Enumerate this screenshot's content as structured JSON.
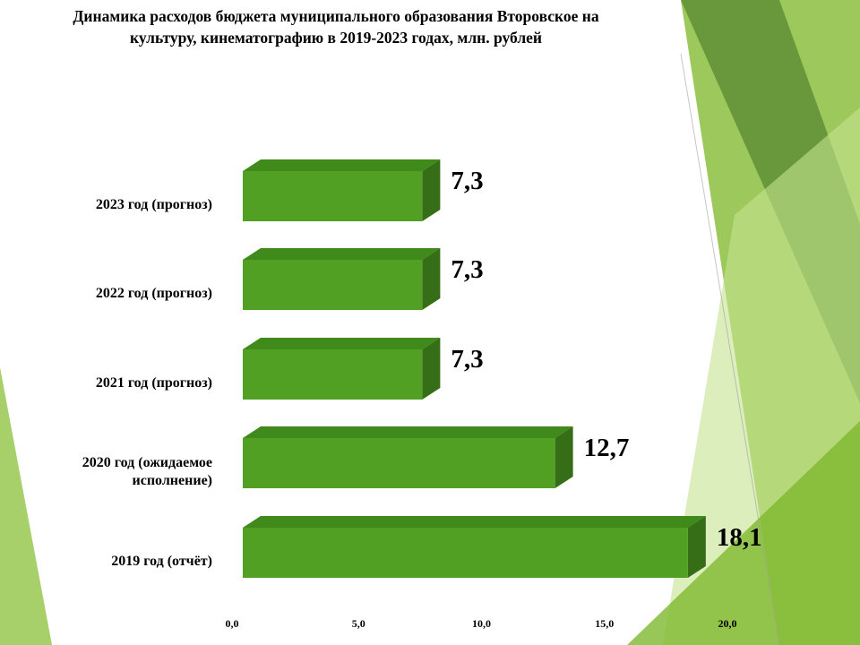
{
  "title": {
    "line1": "Динамика расходов бюджета муниципального образования Второвское на",
    "line2": "культуру, кинематографию в 2019-2023 годах, млн. рублей"
  },
  "colors": {
    "bar_front": "#52a023",
    "bar_top": "#3f8a1a",
    "bar_side": "#356e16",
    "deco_light": "#a8d06a",
    "deco_mid": "#8cbf3f",
    "deco_dark": "#5f8f35"
  },
  "chart_data": {
    "type": "bar",
    "orientation": "horizontal",
    "style": "3d",
    "categories": [
      "2023 год (прогноз)",
      "2022 год (прогноз)",
      "2021 год (прогноз)",
      "2020 год (ожидаемое исполнение)",
      "2019 год (отчёт)"
    ],
    "category_lines": [
      [
        "2023 год (прогноз)"
      ],
      [
        "2022 год (прогноз)"
      ],
      [
        "2021 год (прогноз)"
      ],
      [
        "2020 год (ожидаемое",
        "исполнение)"
      ],
      [
        "2019 год (отчёт)"
      ]
    ],
    "values": [
      7.3,
      7.3,
      7.3,
      12.7,
      18.1
    ],
    "value_labels": [
      "7,3",
      "7,3",
      "7,3",
      "12,7",
      "18,1"
    ],
    "xlim": [
      0,
      20
    ],
    "ticks": [
      0,
      5,
      10,
      15,
      20
    ],
    "tick_labels": [
      "0,0",
      "5,0",
      "10,0",
      "15,0",
      "20,0"
    ],
    "grid": false,
    "legend": "none"
  }
}
